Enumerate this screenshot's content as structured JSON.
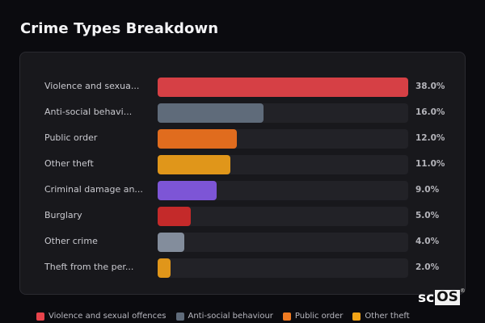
{
  "header": {
    "title": "Crime Types Breakdown"
  },
  "chart_data": {
    "type": "bar",
    "orientation": "horizontal",
    "title": "Crime Types Breakdown",
    "xlabel": "",
    "ylabel": "",
    "unit": "%",
    "categories": [
      "Violence and sexual offences",
      "Anti-social behaviour",
      "Public order",
      "Other theft",
      "Criminal damage and arson",
      "Burglary",
      "Other crime",
      "Theft from the person"
    ],
    "display_labels": [
      "Violence and sexua...",
      "Anti-social behavi...",
      "Public order",
      "Other theft",
      "Criminal damage an...",
      "Burglary",
      "Other crime",
      "Theft from the per..."
    ],
    "values": [
      38.0,
      16.0,
      12.0,
      11.0,
      9.0,
      5.0,
      4.0,
      2.0
    ],
    "value_labels": [
      "38.0%",
      "16.0%",
      "12.0%",
      "11.0%",
      "9.0%",
      "5.0%",
      "4.0%",
      "2.0%"
    ],
    "colors": [
      "#d64045",
      "#5f6b7a",
      "#e06c1e",
      "#e0961a",
      "#7d55d6",
      "#c42a2a",
      "#838d9c",
      "#e0961a"
    ],
    "scale_max": 38.0,
    "legend": {
      "position": "bottom",
      "entries": [
        {
          "label": "Violence and sexual offences",
          "color": "#e8434b"
        },
        {
          "label": "Anti-social behaviour",
          "color": "#5f6b7a"
        },
        {
          "label": "Public order",
          "color": "#f07b22"
        },
        {
          "label": "Other theft",
          "color": "#f2a417"
        }
      ]
    },
    "grid": false
  },
  "brand": {
    "logo_sc": "sc",
    "logo_os": "OS",
    "logo_reg": "®"
  }
}
